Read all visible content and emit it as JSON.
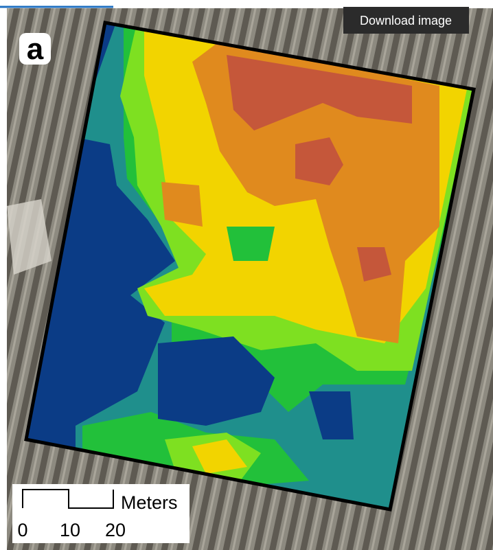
{
  "button": {
    "label": "Download image"
  },
  "panel_label": "a",
  "scale_bar": {
    "unit": "Meters",
    "ticks": [
      "0",
      "10",
      "20"
    ]
  }
}
